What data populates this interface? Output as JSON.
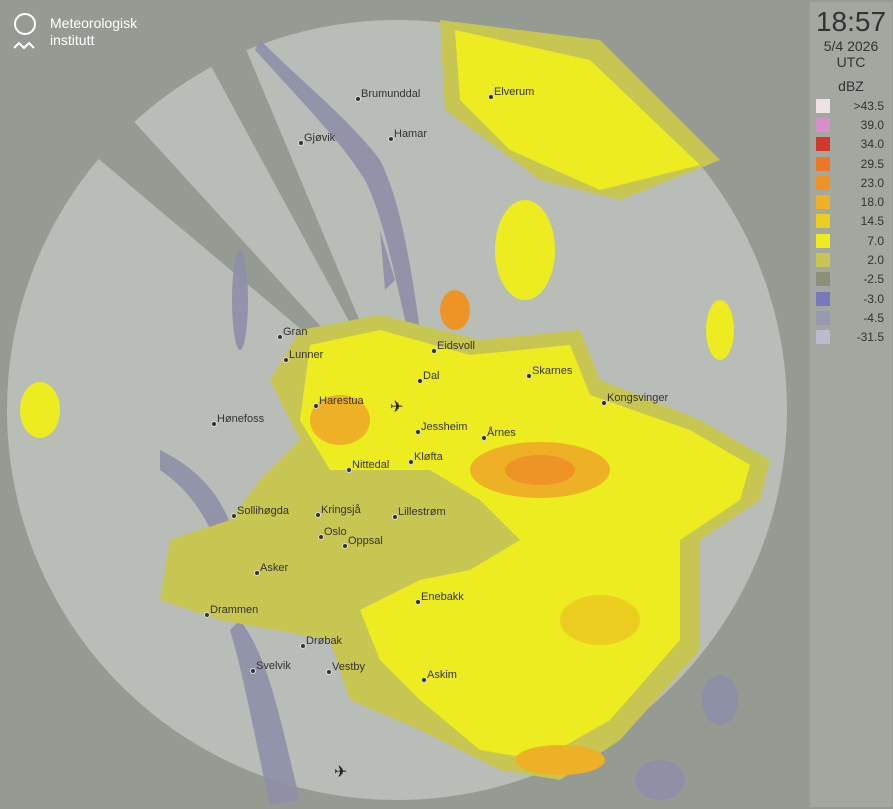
{
  "brand": {
    "name_line1": "Meteorologisk",
    "name_line2": "institutt"
  },
  "panel": {
    "time": "18:57",
    "date": "5/4 2026",
    "timezone": "UTC",
    "unit": "dBZ",
    "legend": [
      {
        "label": ">43.5",
        "color": "#ede3e5"
      },
      {
        "label": "39.0",
        "color": "#d590cc"
      },
      {
        "label": "34.0",
        "color": "#d0392a"
      },
      {
        "label": "29.5",
        "color": "#ec7826"
      },
      {
        "label": "23.0",
        "color": "#ee9427"
      },
      {
        "label": "18.0",
        "color": "#eeb025"
      },
      {
        "label": "14.5",
        "color": "#ecce20"
      },
      {
        "label": "7.0",
        "color": "#ecec20"
      },
      {
        "label": "2.0",
        "color": "#c8c652"
      },
      {
        "label": "-2.5",
        "color": "#8e8f78"
      },
      {
        "label": "-3.0",
        "color": "#7878bb"
      },
      {
        "label": "-4.5",
        "color": "#9898b1"
      },
      {
        "label": "-31.5",
        "color": "#babbcd"
      }
    ]
  },
  "cities": [
    {
      "name": "Brumunddal"
    },
    {
      "name": "Elverum"
    },
    {
      "name": "Gjøvik"
    },
    {
      "name": "Hamar"
    },
    {
      "name": "Gran"
    },
    {
      "name": "Eidsvoll"
    },
    {
      "name": "Lunner"
    },
    {
      "name": "Dal"
    },
    {
      "name": "Skarnes"
    },
    {
      "name": "Harestua"
    },
    {
      "name": "Kongsvinger"
    },
    {
      "name": "Hønefoss"
    },
    {
      "name": "Jessheim"
    },
    {
      "name": "Årnes"
    },
    {
      "name": "Nittedal"
    },
    {
      "name": "Kløfta"
    },
    {
      "name": "Sollihøgda"
    },
    {
      "name": "Kringsjå"
    },
    {
      "name": "Lillestrøm"
    },
    {
      "name": "Oslo"
    },
    {
      "name": "Oppsal"
    },
    {
      "name": "Asker"
    },
    {
      "name": "Enebakk"
    },
    {
      "name": "Drammen"
    },
    {
      "name": "Drøbak"
    },
    {
      "name": "Svelvik"
    },
    {
      "name": "Vestby"
    },
    {
      "name": "Askim"
    }
  ],
  "icons": {
    "airport": "airplane-icon",
    "logo": "met-logo-icon"
  }
}
